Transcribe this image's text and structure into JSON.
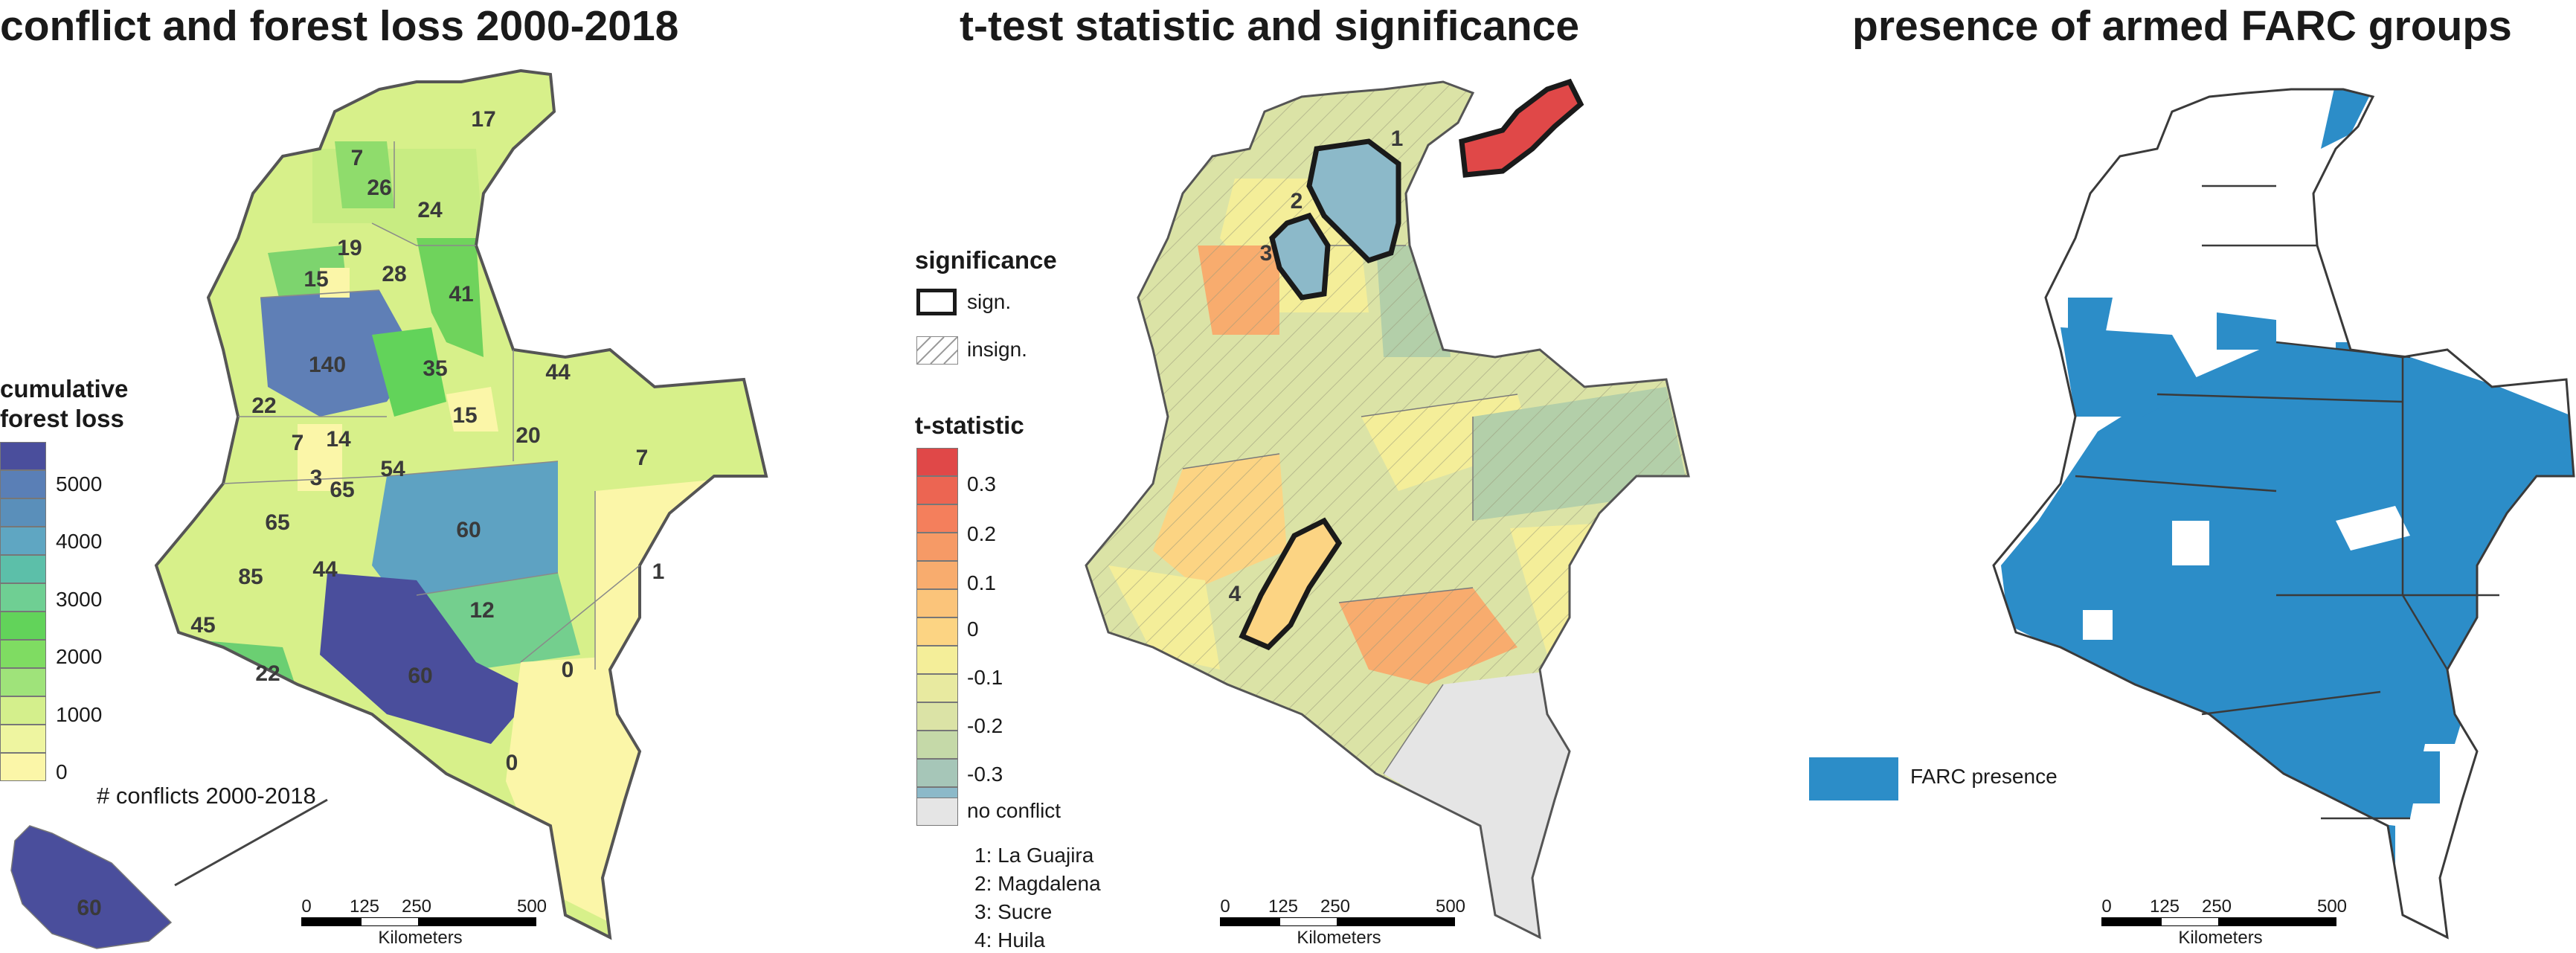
{
  "panels": {
    "p1": {
      "title": "conflict and forest loss 2000-2018"
    },
    "p2": {
      "title": "t-test statistic and significance"
    },
    "p3": {
      "title": "presence of armed FARC groups"
    }
  },
  "forest_legend": {
    "title": "cumulative forest loss",
    "entries": [
      {
        "label": "5000",
        "color": "#4a4e9c"
      },
      {
        "label": "4000",
        "color": "#5a7fb6"
      },
      {
        "label": "3000",
        "color": "#5fa6c2"
      },
      {
        "label": "2000",
        "color": "#6fcf93"
      },
      {
        "label": "1000",
        "color": "#9fe37a"
      },
      {
        "label": "0",
        "color": "#fbf6a8"
      }
    ],
    "conflict_note": "# conflicts 2000-2018",
    "inset_value": "60"
  },
  "conflict_counts": [
    "17",
    "7",
    "26",
    "24",
    "19",
    "28",
    "15",
    "41",
    "140",
    "35",
    "44",
    "22",
    "15",
    "20",
    "7",
    "7",
    "14",
    "3",
    "65",
    "54",
    "65",
    "60",
    "85",
    "44",
    "1",
    "12",
    "45",
    "22",
    "60",
    "0",
    "0"
  ],
  "significance_legend": {
    "title": "significance",
    "sign": "sign.",
    "insign": "insign."
  },
  "tstat_legend": {
    "title": "t-statistic",
    "ticks": [
      "0.3",
      "0.2",
      "0.1",
      "0",
      "-0.1",
      "-0.2",
      "-0.3"
    ],
    "colors": [
      "#e04848",
      "#f47f5c",
      "#f8ac6e",
      "#fcd483",
      "#f4ee99",
      "#dbe3a6",
      "#b3cfa9",
      "#8cb9c9"
    ],
    "no_conflict": "no conflict",
    "no_conflict_color": "#e5e5e5"
  },
  "departments": [
    "1: La Guajira",
    "2: Magdalena",
    "3: Sucre",
    "4: Huila"
  ],
  "sig_labels": [
    "1",
    "2",
    "3",
    "4"
  ],
  "farc_legend": {
    "label": "FARC presence",
    "color": "#2c8dc8"
  },
  "scale_bar": {
    "ticks": [
      "0",
      "125",
      "250",
      "500"
    ],
    "unit": "Kilometers"
  }
}
